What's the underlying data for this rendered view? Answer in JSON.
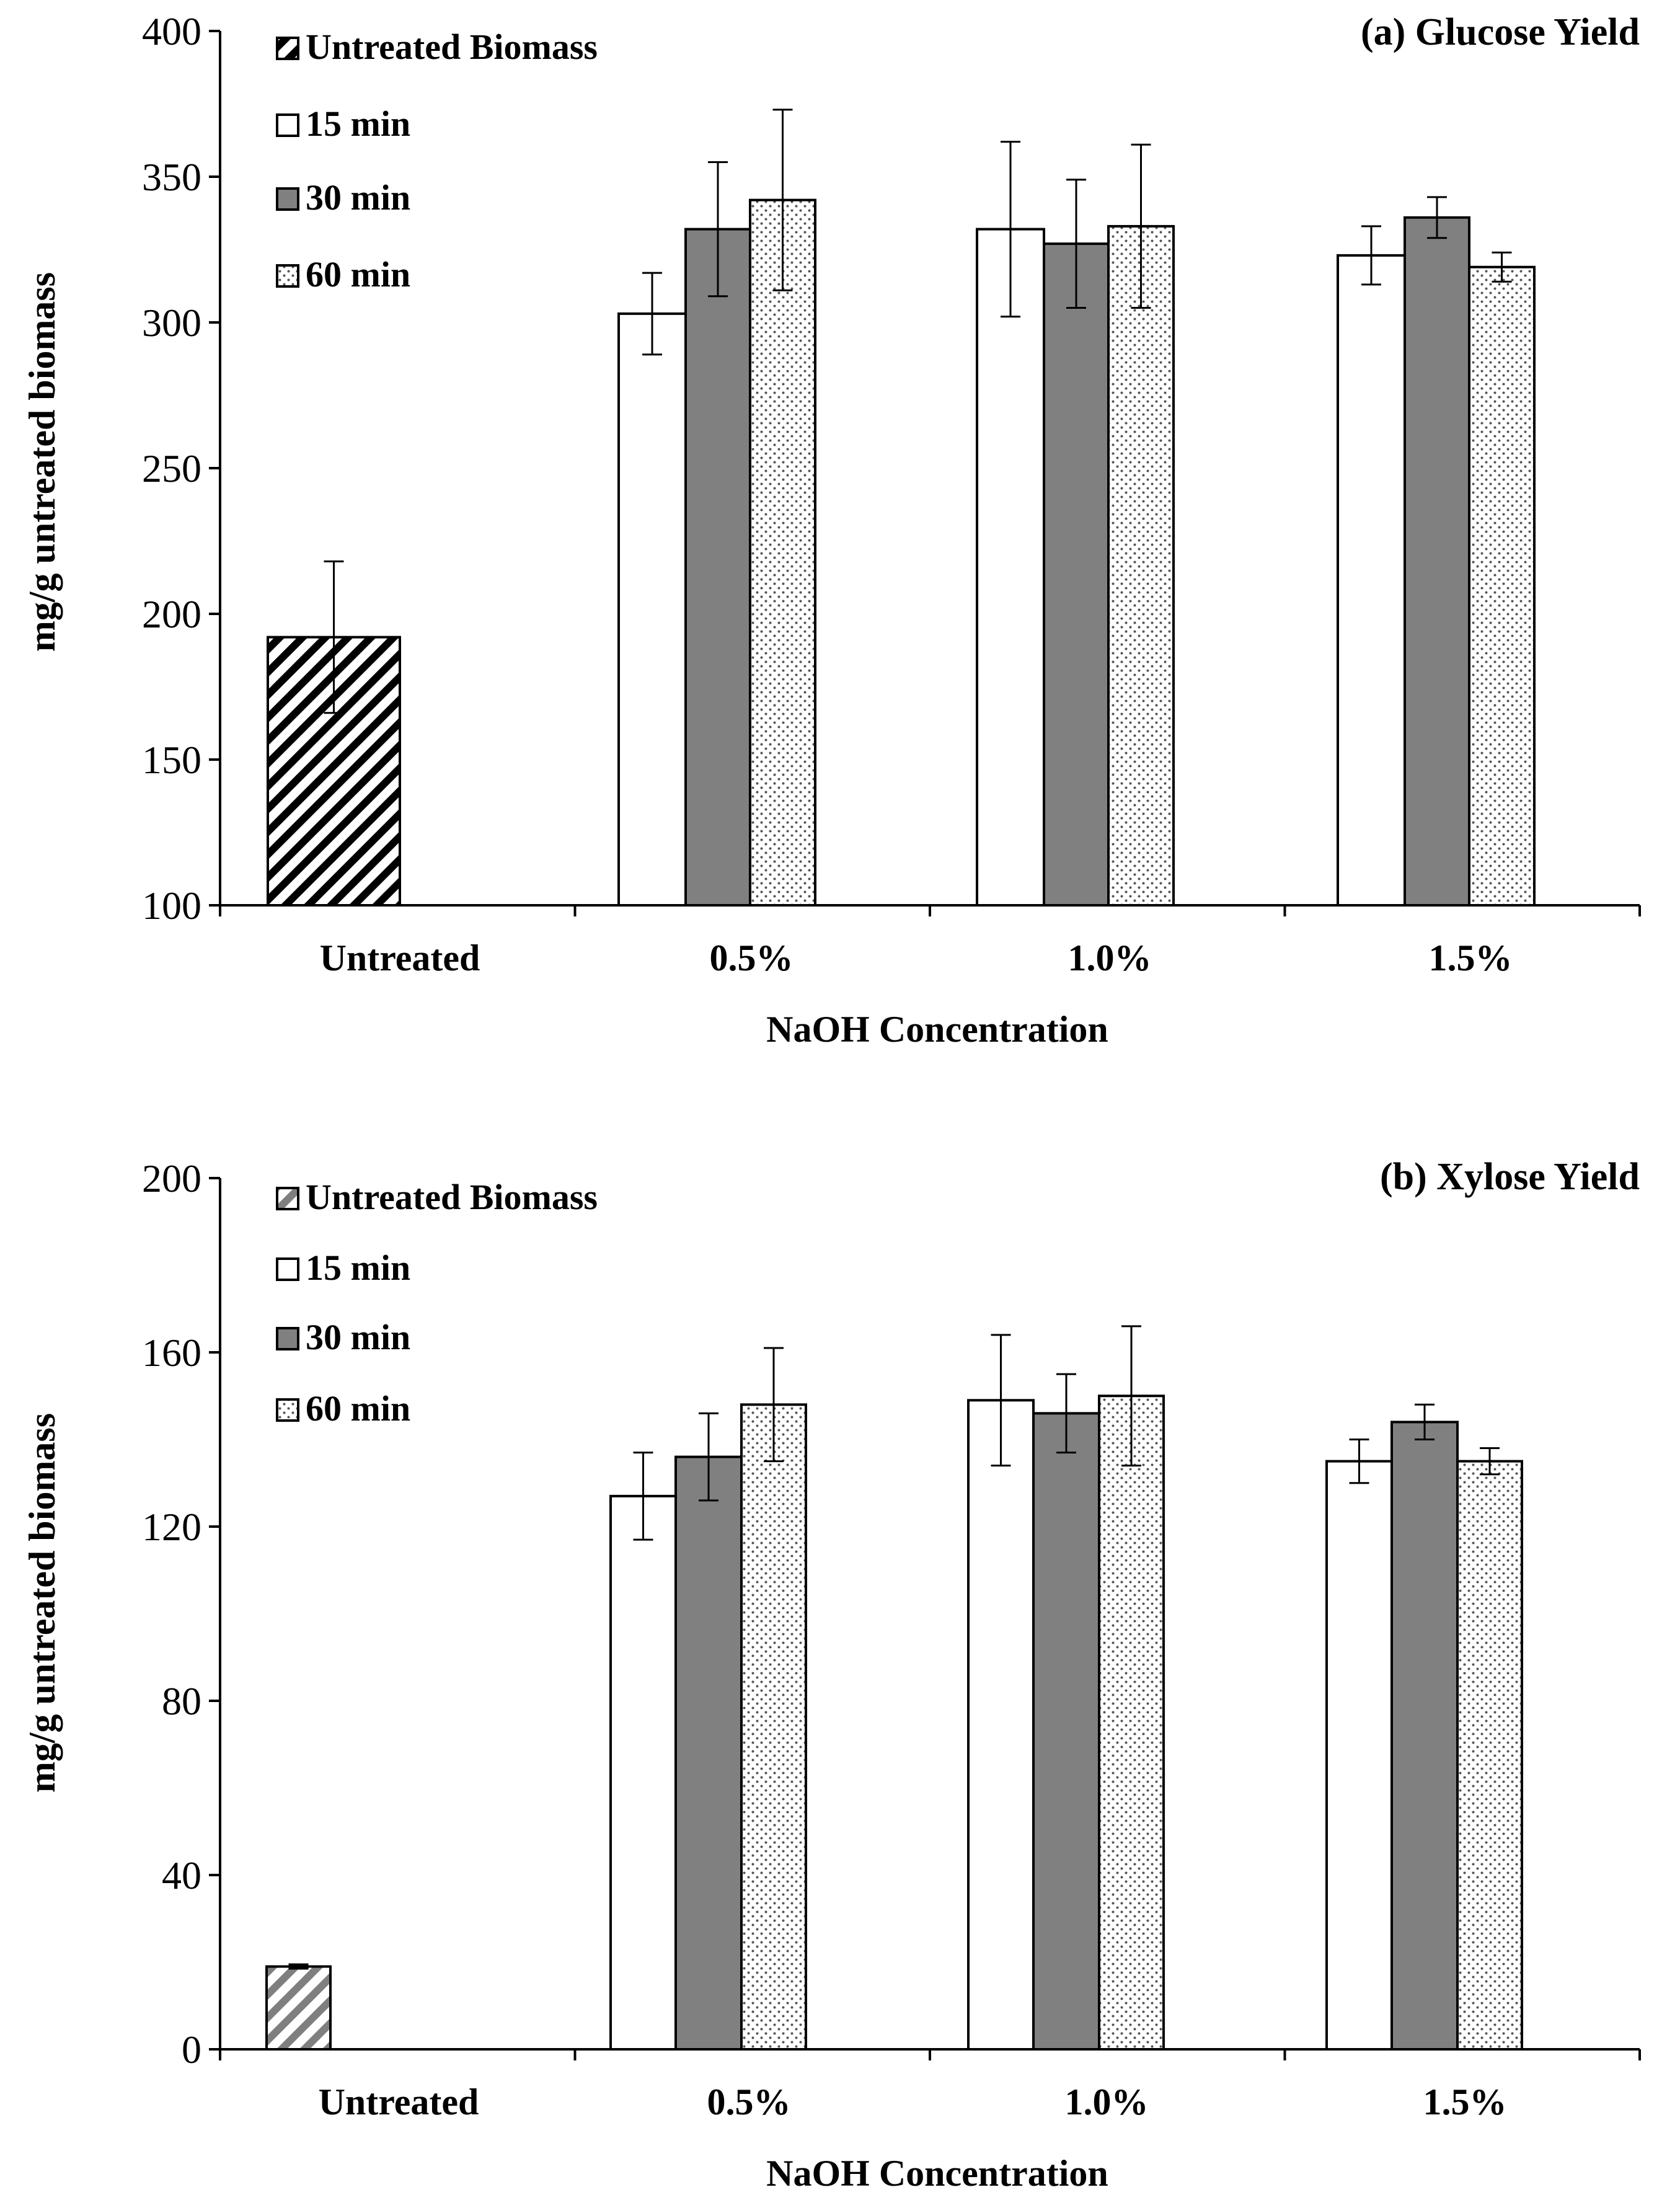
{
  "chart_data": [
    {
      "type": "bar",
      "title": "(a) Glucose Yield",
      "xlabel": "NaOH Concentration",
      "ylabel": "mg/g untreated biomass",
      "ylim": [
        100,
        400
      ],
      "yticks": [
        100,
        150,
        200,
        250,
        300,
        350,
        400
      ],
      "grid": false,
      "legend_position": "top-left",
      "categories": [
        "Untreated",
        "0.5%",
        "1.0%",
        "1.5%"
      ],
      "series": [
        {
          "name": "Untreated Biomass",
          "fill": "hatch",
          "values": [
            192,
            null,
            null,
            null
          ],
          "errors": [
            26,
            null,
            null,
            null
          ]
        },
        {
          "name": "15 min",
          "fill": "white",
          "values": [
            null,
            303,
            332,
            323
          ],
          "errors": [
            null,
            14,
            30,
            10
          ]
        },
        {
          "name": "30 min",
          "fill": "gray",
          "values": [
            null,
            332,
            327,
            336
          ],
          "errors": [
            null,
            23,
            22,
            7
          ]
        },
        {
          "name": "60 min",
          "fill": "dots",
          "values": [
            null,
            342,
            333,
            319
          ],
          "errors": [
            null,
            31,
            28,
            5
          ]
        }
      ]
    },
    {
      "type": "bar",
      "title": "(b) Xylose Yield",
      "xlabel": "NaOH Concentration",
      "ylabel": "mg/g untreated biomass",
      "ylim": [
        0,
        200
      ],
      "yticks": [
        0,
        40,
        80,
        120,
        160,
        200
      ],
      "grid": false,
      "legend_position": "top-left",
      "categories": [
        "Untreated",
        "0.5%",
        "1.0%",
        "1.5%"
      ],
      "series": [
        {
          "name": "Untreated Biomass",
          "fill": "hatch-gray",
          "values": [
            19,
            null,
            null,
            null
          ],
          "errors": [
            0.5,
            null,
            null,
            null
          ]
        },
        {
          "name": "15 min",
          "fill": "white",
          "values": [
            null,
            127,
            149,
            135
          ],
          "errors": [
            null,
            10,
            15,
            5
          ]
        },
        {
          "name": "30 min",
          "fill": "gray",
          "values": [
            null,
            136,
            146,
            144
          ],
          "errors": [
            null,
            10,
            9,
            4
          ]
        },
        {
          "name": "60 min",
          "fill": "dots",
          "values": [
            null,
            148,
            150,
            135
          ],
          "errors": [
            null,
            13,
            16,
            3
          ]
        }
      ]
    }
  ]
}
